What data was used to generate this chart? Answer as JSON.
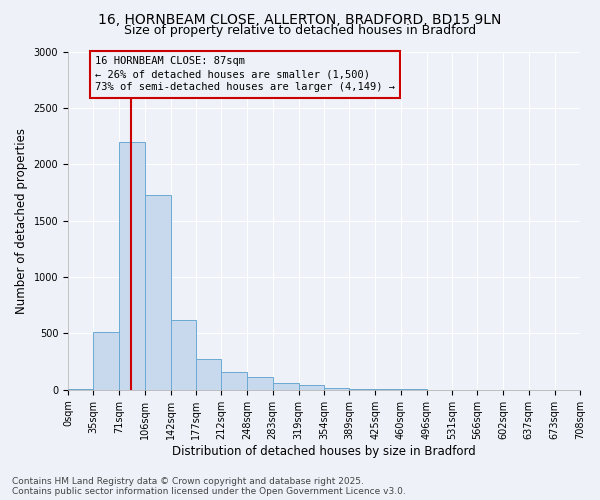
{
  "title_line1": "16, HORNBEAM CLOSE, ALLERTON, BRADFORD, BD15 9LN",
  "title_line2": "Size of property relative to detached houses in Bradford",
  "xlabel": "Distribution of detached houses by size in Bradford",
  "ylabel": "Number of detached properties",
  "bar_bins": [
    0,
    35,
    71,
    106,
    142,
    177,
    212,
    248,
    283,
    319,
    354,
    389,
    425,
    460,
    496,
    531,
    566,
    602,
    637,
    673,
    708
  ],
  "bar_values": [
    5,
    510,
    2200,
    1730,
    620,
    270,
    155,
    115,
    60,
    40,
    20,
    10,
    8,
    5,
    3,
    2,
    1,
    1,
    0,
    0
  ],
  "bar_color": "#c8d9ee",
  "bar_edge_color": "#6aaad4",
  "vline_x": 87,
  "vline_color": "#cc0000",
  "annotation_text": "16 HORNBEAM CLOSE: 87sqm\n← 26% of detached houses are smaller (1,500)\n73% of semi-detached houses are larger (4,149) →",
  "annotation_box_color": "#cc0000",
  "ylim": [
    0,
    3000
  ],
  "yticks": [
    0,
    500,
    1000,
    1500,
    2000,
    2500,
    3000
  ],
  "bg_color": "#eef2f8",
  "grid_color": "#ffffff",
  "footer_line1": "Contains HM Land Registry data © Crown copyright and database right 2025.",
  "footer_line2": "Contains public sector information licensed under the Open Government Licence v3.0.",
  "title_fontsize": 10,
  "subtitle_fontsize": 9,
  "axis_label_fontsize": 8.5,
  "tick_fontsize": 7,
  "annotation_fontsize": 7.5,
  "footer_fontsize": 6.5
}
